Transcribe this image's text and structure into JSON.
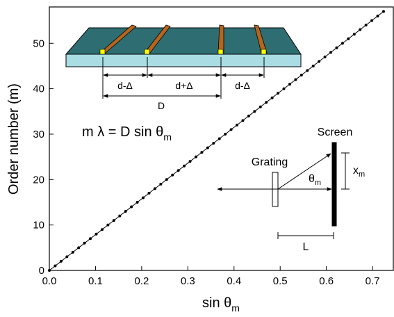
{
  "chart_data": {
    "type": "scatter",
    "x_label": {
      "text": "sin θ",
      "sub": "m"
    },
    "y_label": "Order number (m)",
    "x": [
      0,
      0.0127,
      0.0254,
      0.0381,
      0.0508,
      0.0635,
      0.0762,
      0.0889,
      0.1016,
      0.1143,
      0.127,
      0.1397,
      0.1524,
      0.1651,
      0.1778,
      0.1905,
      0.2032,
      0.2159,
      0.2286,
      0.2413,
      0.254,
      0.2667,
      0.2794,
      0.2921,
      0.3048,
      0.3175,
      0.3302,
      0.3429,
      0.3556,
      0.3683,
      0.381,
      0.3937,
      0.4064,
      0.4191,
      0.4318,
      0.4445,
      0.4572,
      0.4699,
      0.4826,
      0.4953,
      0.508,
      0.5207,
      0.5334,
      0.5461,
      0.5588,
      0.5715,
      0.5842,
      0.5969,
      0.6096,
      0.6223,
      0.635,
      0.6477,
      0.6604,
      0.6731,
      0.6858,
      0.6985,
      0.7112,
      0.7239
    ],
    "values": [
      0,
      1,
      2,
      3,
      4,
      5,
      6,
      7,
      8,
      9,
      10,
      11,
      12,
      13,
      14,
      15,
      16,
      17,
      18,
      19,
      20,
      21,
      22,
      23,
      24,
      25,
      26,
      27,
      28,
      29,
      30,
      31,
      32,
      33,
      34,
      35,
      36,
      37,
      38,
      39,
      40,
      41,
      42,
      43,
      44,
      45,
      46,
      47,
      48,
      49,
      50,
      51,
      52,
      53,
      54,
      55,
      56,
      57
    ],
    "color": "#000000",
    "xlim": [
      0,
      0.745
    ],
    "ylim": [
      0,
      58
    ],
    "xticks": [
      {
        "value": 0,
        "label": "0.0"
      },
      0.1,
      0.2,
      0.3,
      0.4,
      0.5,
      0.6,
      0.7
    ],
    "yticks": [
      0,
      10,
      20,
      30,
      40,
      50
    ],
    "annotations": {
      "gap1": "d-Δ",
      "gap2": "d+Δ",
      "gap3": "d-Δ",
      "period": "D",
      "equation": {
        "text": "m λ = D sin θ",
        "sub": "m"
      },
      "screen": "Screen",
      "grating": "Grating",
      "angle": {
        "text": "θ",
        "sub": "m"
      },
      "offset": {
        "text": "x",
        "sub": "m"
      },
      "distance": "L"
    }
  }
}
